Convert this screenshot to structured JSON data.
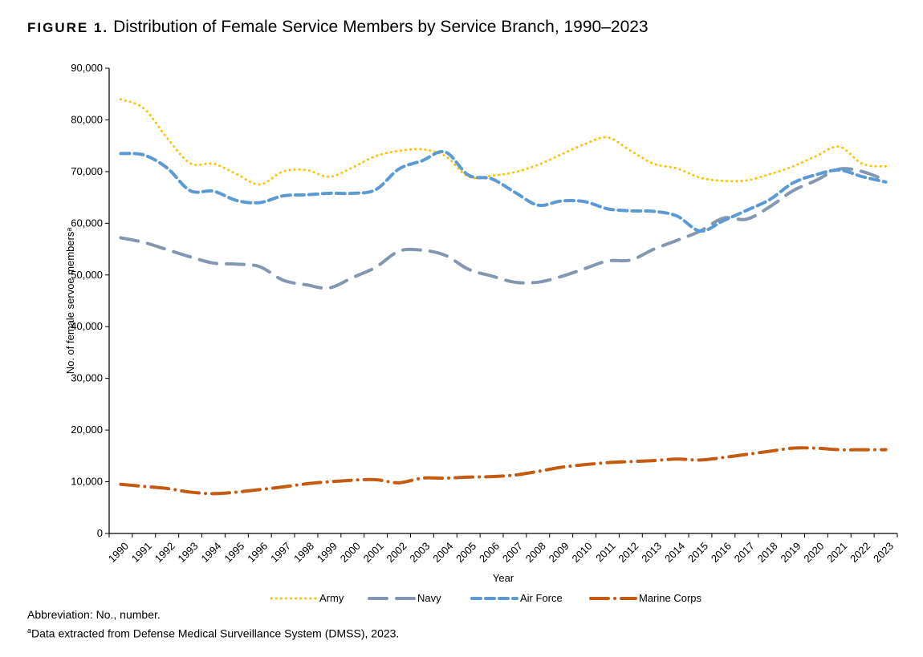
{
  "figure": {
    "label": "FIGURE 1.",
    "title": "Distribution of Female Service Members by Service Branch, 1990–2023",
    "notes": [
      "Abbreviation: No., number.",
      "Data extracted from Defense Medical Surveillance System (DMSS), 2023."
    ],
    "note_superscript": "a"
  },
  "chart_data": {
    "type": "line",
    "title": "Distribution of Female Service Members by Service Branch, 1990–2023",
    "xlabel": "Year",
    "ylabel": "No. of female servoe membersᵃ",
    "ylim": [
      0,
      90000
    ],
    "yticks": [
      0,
      10000,
      20000,
      30000,
      40000,
      50000,
      60000,
      70000,
      80000,
      90000
    ],
    "ytick_labels": [
      "0",
      "10,000",
      "20,000",
      "30,000",
      "40,000",
      "50,000",
      "60,000",
      "70,000",
      "80,000",
      "90,000"
    ],
    "grid": false,
    "legend": "bottom",
    "smoothed": true,
    "categories": [
      "1990",
      "1991",
      "1992",
      "1993",
      "1994",
      "1995",
      "1996",
      "1997",
      "1998",
      "1999",
      "2000",
      "2001",
      "2002",
      "2003",
      "2004",
      "2005",
      "2006",
      "2007",
      "2008",
      "2009",
      "2010",
      "2011",
      "2012",
      "2013",
      "2014",
      "2015",
      "2016",
      "2017",
      "2018",
      "2019",
      "2020",
      "2021",
      "2022",
      "2023"
    ],
    "series": [
      {
        "name": "Army",
        "color": "#FFC000",
        "dash": "dot",
        "values": [
          84000,
          82200,
          76500,
          71600,
          71500,
          69500,
          67500,
          70000,
          70300,
          69000,
          70800,
          73000,
          74000,
          74300,
          73000,
          69000,
          69200,
          69900,
          71300,
          73300,
          75300,
          76600,
          74000,
          71500,
          70600,
          68800,
          68200,
          68300,
          69500,
          71000,
          73000,
          74800,
          71500,
          71000
        ]
      },
      {
        "name": "Navy",
        "color": "#8497B0",
        "dash": "longdash",
        "values": [
          57200,
          56300,
          54900,
          53500,
          52300,
          52100,
          51600,
          49000,
          48100,
          47500,
          49500,
          51500,
          54600,
          54800,
          53800,
          51100,
          49800,
          48600,
          48600,
          49700,
          51200,
          52700,
          52900,
          55000,
          56700,
          58500,
          61000,
          60800,
          63200,
          66300,
          68300,
          70500,
          70000,
          68300
        ]
      },
      {
        "name": "Air Force",
        "color": "#5B9BD5",
        "dash": "dash",
        "values": [
          73500,
          73200,
          70700,
          66300,
          66200,
          64400,
          64000,
          65300,
          65500,
          65800,
          65800,
          66500,
          70500,
          72100,
          73800,
          69300,
          68600,
          66000,
          63500,
          64300,
          64200,
          62800,
          62400,
          62300,
          61400,
          58500,
          60500,
          62500,
          64600,
          67800,
          69400,
          70300,
          69000,
          68000
        ]
      },
      {
        "name": "Marine Corps",
        "color": "#C55A11",
        "dash": "dashdot",
        "values": [
          9500,
          9100,
          8700,
          8000,
          7700,
          8000,
          8500,
          9000,
          9600,
          10000,
          10300,
          10400,
          9800,
          10700,
          10700,
          10900,
          11000,
          11300,
          12000,
          12800,
          13300,
          13700,
          13900,
          14100,
          14400,
          14200,
          14700,
          15300,
          15900,
          16500,
          16500,
          16200,
          16200,
          16200
        ]
      }
    ]
  }
}
